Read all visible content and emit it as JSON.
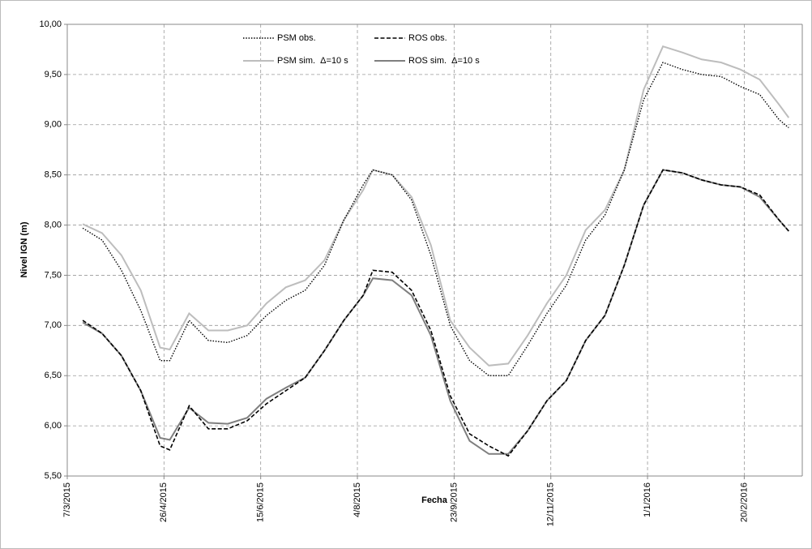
{
  "chart_data": {
    "type": "line",
    "x_label": "Fecha",
    "y_label": "Nivel IGN (m)",
    "x": [
      "15/3/2015",
      "25/3/2015",
      "4/4/2015",
      "14/4/2015",
      "24/4/2015",
      "29/4/2015",
      "9/5/2015",
      "19/5/2015",
      "29/5/2015",
      "8/6/2015",
      "18/6/2015",
      "28/6/2015",
      "8/7/2015",
      "18/7/2015",
      "28/7/2015",
      "7/8/2015",
      "12/8/2015",
      "22/8/2015",
      "1/9/2015",
      "11/9/2015",
      "21/9/2015",
      "1/10/2015",
      "11/10/2015",
      "21/10/2015",
      "31/10/2015",
      "10/11/2015",
      "20/11/2015",
      "30/11/2015",
      "10/12/2015",
      "20/12/2015",
      "30/12/2015",
      "9/1/2016",
      "19/1/2016",
      "29/1/2016",
      "8/2/2016",
      "18/2/2016",
      "28/2/2016",
      "9/3/2016",
      "14/3/2016"
    ],
    "series": [
      {
        "name": "PSM obs.",
        "color": "#000000",
        "line_style": "dotted",
        "values": [
          7.97,
          7.85,
          7.55,
          7.15,
          6.65,
          6.65,
          7.05,
          6.85,
          6.83,
          6.9,
          7.1,
          7.25,
          7.35,
          7.6,
          8.05,
          8.4,
          8.55,
          8.5,
          8.25,
          7.7,
          7.0,
          6.65,
          6.5,
          6.5,
          6.8,
          7.12,
          7.4,
          7.85,
          8.1,
          8.55,
          9.25,
          9.62,
          9.55,
          9.5,
          9.48,
          9.38,
          9.3,
          9.05,
          8.97
        ]
      },
      {
        "name": "ROS obs.",
        "color": "#000000",
        "line_style": "dashed",
        "values": [
          7.05,
          6.92,
          6.7,
          6.35,
          5.8,
          5.76,
          6.2,
          5.97,
          5.97,
          6.05,
          6.22,
          6.35,
          6.48,
          6.75,
          7.05,
          7.3,
          7.55,
          7.53,
          7.35,
          6.95,
          6.3,
          5.92,
          5.8,
          5.7,
          5.95,
          6.25,
          6.45,
          6.85,
          7.1,
          7.6,
          8.2,
          8.55,
          8.52,
          8.45,
          8.4,
          8.38,
          8.3,
          8.05,
          7.94
        ]
      },
      {
        "name": "PSM sim.  Δ=10 s",
        "color": "#bdbdbd",
        "line_style": "solid",
        "values": [
          8.01,
          7.92,
          7.7,
          7.35,
          6.78,
          6.76,
          7.12,
          6.95,
          6.95,
          7.0,
          7.22,
          7.38,
          7.45,
          7.65,
          8.05,
          8.35,
          8.55,
          8.5,
          8.28,
          7.8,
          7.05,
          6.78,
          6.6,
          6.62,
          6.9,
          7.22,
          7.5,
          7.95,
          8.15,
          8.55,
          9.35,
          9.78,
          9.72,
          9.65,
          9.62,
          9.55,
          9.45,
          9.2,
          9.07
        ]
      },
      {
        "name": "ROS sim.  Δ=10 s",
        "color": "#7f7f7f",
        "line_style": "solid",
        "values": [
          7.03,
          6.92,
          6.7,
          6.35,
          5.88,
          5.86,
          6.18,
          6.03,
          6.02,
          6.08,
          6.27,
          6.38,
          6.48,
          6.75,
          7.05,
          7.3,
          7.47,
          7.45,
          7.3,
          6.9,
          6.25,
          5.85,
          5.72,
          5.72,
          5.95,
          6.25,
          6.45,
          6.85,
          7.1,
          7.6,
          8.2,
          8.55,
          8.52,
          8.45,
          8.4,
          8.38,
          8.28,
          8.05,
          7.94
        ]
      }
    ],
    "xlim": [
      "7/3/2015",
      "21/3/2016"
    ],
    "xticks": [
      "7/3/2015",
      "26/4/2015",
      "15/6/2015",
      "4/8/2015",
      "23/9/2015",
      "12/11/2015",
      "1/1/2016",
      "20/2/2016"
    ],
    "ylim": [
      5.5,
      10
    ],
    "yticks": [
      {
        "value": 5.5,
        "label": "5,50"
      },
      {
        "value": 6,
        "label": "6,00"
      },
      {
        "value": 6.5,
        "label": "6,50"
      },
      {
        "value": 7,
        "label": "7,00"
      },
      {
        "value": 7.5,
        "label": "7,50"
      },
      {
        "value": 8,
        "label": "8,00"
      },
      {
        "value": 8.5,
        "label": "8,50"
      },
      {
        "value": 9,
        "label": "9,00"
      },
      {
        "value": 9.5,
        "label": "9,50"
      },
      {
        "value": 10,
        "label": "10,00"
      }
    ],
    "grid": true
  }
}
